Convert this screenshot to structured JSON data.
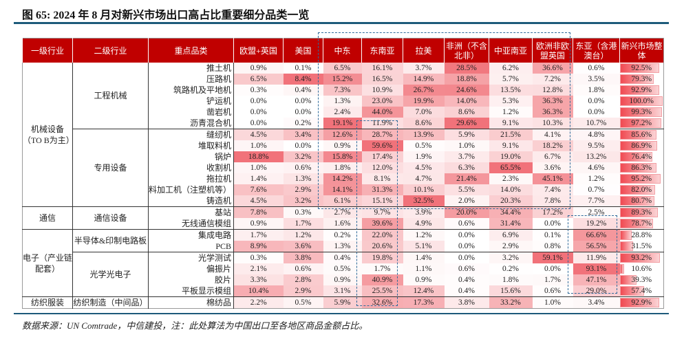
{
  "title": "图 65: 2024 年 8 月对新兴市场出口高占比重要细分品类一览",
  "note": "数据来源：UN Comtrade，中信建投，注：此处算法为中国出口至各地区商品金额占比。",
  "colors": {
    "header_bg": "#c00000",
    "heat": "#eb3c46",
    "rule": "#1d5a7a",
    "highlight_box": "#2e6a9a"
  },
  "table": {
    "headers": [
      "一级行业",
      "二级行业",
      "重点品类",
      "欧盟+英国",
      "美国",
      "中东",
      "东南亚",
      "拉美",
      "非洲（不含北非）",
      "中亚南亚",
      "欧洲非欧盟英国",
      "东亚（含港澳台）",
      "新兴市场整体"
    ],
    "level1_groups": [
      {
        "label": "机械设备（TO B为主）",
        "start": 0,
        "span": 13
      },
      {
        "label": "通信",
        "start": 13,
        "span": 2
      },
      {
        "label": "电子（产业链配套）",
        "start": 15,
        "span": 6
      },
      {
        "label": "纺织服装",
        "start": 21,
        "span": 1
      }
    ],
    "level2_groups": [
      {
        "label": "工程机械",
        "start": 0,
        "span": 6
      },
      {
        "label": "专用设备",
        "start": 6,
        "span": 7
      },
      {
        "label": "通信设备",
        "start": 13,
        "span": 2
      },
      {
        "label": "半导体&印制电路板",
        "start": 15,
        "span": 2
      },
      {
        "label": "光学光电子",
        "start": 17,
        "span": 4
      },
      {
        "label": "纺织制造（中间品）",
        "start": 21,
        "span": 1
      }
    ],
    "rows": [
      {
        "category": "推土机",
        "values": [
          "0.9%",
          "0.1%",
          "6.5%",
          "16.1%",
          "3.7%",
          "28.5%",
          "6.2%",
          "36.6%",
          "0.6%",
          "92.5%"
        ]
      },
      {
        "category": "压路机",
        "values": [
          "6.5%",
          "8.4%",
          "15.2%",
          "16.5%",
          "14.9%",
          "18.8%",
          "5.7%",
          "7.2%",
          "3.5%",
          "79.3%"
        ]
      },
      {
        "category": "筑路机及平地机",
        "values": [
          "0.3%",
          "0.4%",
          "7.3%",
          "10.9%",
          "26.7%",
          "24.6%",
          "13.5%",
          "12.8%",
          "1.8%",
          "92.9%"
        ]
      },
      {
        "category": "铲运机",
        "values": [
          "0.0%",
          "0.0%",
          "1.3%",
          "23.0%",
          "19.9%",
          "14.0%",
          "5.3%",
          "36.3%",
          "0.0%",
          "100.0%"
        ]
      },
      {
        "category": "凿岩机",
        "values": [
          "0.0%",
          "0.0%",
          "2.4%",
          "44.0%",
          "7.0%",
          "8.6%",
          "1.2%",
          "36.3%",
          "0.0%",
          "99.3%"
        ]
      },
      {
        "category": "沥青混合机",
        "values": [
          "0.0%",
          "0.2%",
          "19.1%",
          "11.9%",
          "8.6%",
          "29.6%",
          "9.1%",
          "10.3%",
          "10.7%",
          "97.2%"
        ]
      },
      {
        "category": "缝纫机",
        "values": [
          "4.5%",
          "3.4%",
          "12.6%",
          "28.7%",
          "13.9%",
          "5.9%",
          "21.5%",
          "4.1%",
          "4.8%",
          "85.6%"
        ]
      },
      {
        "category": "堆取料机",
        "values": [
          "1.0%",
          "0.0%",
          "0.9%",
          "59.6%",
          "0.5%",
          "1.0%",
          "9.1%",
          "18.2%",
          "9.5%",
          "86.9%"
        ]
      },
      {
        "category": "锅炉",
        "values": [
          "18.8%",
          "3.2%",
          "15.8%",
          "17.4%",
          "1.9%",
          "3.7%",
          "19.0%",
          "6.7%",
          "13.2%",
          "76.4%"
        ]
      },
      {
        "category": "收割机",
        "values": [
          "1.0%",
          "0.6%",
          "1.8%",
          "12.0%",
          "4.5%",
          "6.3%",
          "65.5%",
          "3.6%",
          "4.6%",
          "86.3%"
        ]
      },
      {
        "category": "拖拉机",
        "values": [
          "1.4%",
          "1.3%",
          "14.2%",
          "8.1%",
          "4.7%",
          "21.4%",
          "2.3%",
          "45.1%",
          "1.2%",
          "95.2%"
        ]
      },
      {
        "category": "料加工机（注塑机等）",
        "values": [
          "7.6%",
          "2.9%",
          "14.1%",
          "31.3%",
          "10.1%",
          "5.5%",
          "14.0%",
          "7.4%",
          "0.7%",
          "82.0%"
        ]
      },
      {
        "category": "铸造机",
        "values": [
          "4.5%",
          "3.2%",
          "6.1%",
          "15.1%",
          "32.5%",
          "2.0%",
          "20.3%",
          "7.8%",
          "7.7%",
          "80.7%"
        ]
      },
      {
        "category": "基站",
        "values": [
          "7.8%",
          "0.3%",
          "2.7%",
          "9.7%",
          "3.9%",
          "20.0%",
          "34.4%",
          "17.2%",
          "2.5%",
          "89.3%"
        ]
      },
      {
        "category": "无线通信模组",
        "values": [
          "0.9%",
          "1.7%",
          "1.6%",
          "39.6%",
          "4.9%",
          "0.6%",
          "31.4%",
          "0.0%",
          "19.2%",
          "78.7%"
        ]
      },
      {
        "category": "集成电路",
        "values": [
          "1.7%",
          "1.2%",
          "0.2%",
          "22.0%",
          "1.2%",
          "0.0%",
          "6.9%",
          "0.1%",
          "66.6%",
          "28.8%"
        ]
      },
      {
        "category": "PCB",
        "values": [
          "8.9%",
          "3.6%",
          "1.3%",
          "20.6%",
          "5.1%",
          "0.0%",
          "2.9%",
          "0.8%",
          "56.5%",
          "31.5%"
        ]
      },
      {
        "category": "光学测试",
        "values": [
          "0.3%",
          "3.8%",
          "0.4%",
          "19.8%",
          "1.4%",
          "0.0%",
          "3.2%",
          "59.1%",
          "11.9%",
          "93.2%"
        ]
      },
      {
        "category": "偏振片",
        "values": [
          "2.1%",
          "0.6%",
          "0.5%",
          "1.7%",
          "1.1%",
          "0.6%",
          "0.2%",
          "0.0%",
          "93.1%",
          "10.6%"
        ]
      },
      {
        "category": "胶片",
        "values": [
          "3.3%",
          "2.8%",
          "0.9%",
          "40.9%",
          "0.9%",
          "0.4%",
          "1.8%",
          "1.7%",
          "47.1%",
          "39.3%"
        ]
      },
      {
        "category": "平板显示模组",
        "values": [
          "10.4%",
          "2.9%",
          "3.1%",
          "25.5%",
          "12.4%",
          "0.4%",
          "15.6%",
          "0.6%",
          "29.0%",
          "57.4%"
        ]
      },
      {
        "category": "棉纺品",
        "values": [
          "2.2%",
          "0.5%",
          "5.9%",
          "32.6%",
          "17.3%",
          "3.8%",
          "33.2%",
          "1.0%",
          "3.4%",
          "92.9%"
        ]
      }
    ]
  }
}
